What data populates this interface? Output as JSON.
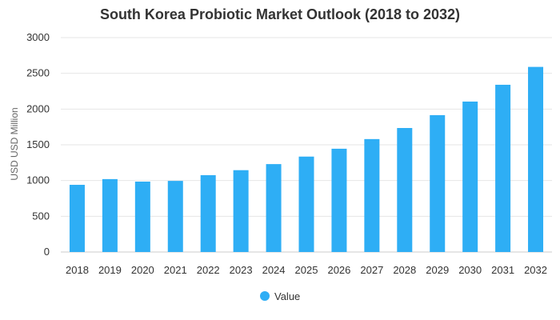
{
  "chart_data": {
    "type": "bar",
    "title": "South Korea Probiotic Market Outlook (2018 to 2032)",
    "xlabel": "",
    "ylabel": "USD USD Million",
    "ylim": [
      0,
      3000
    ],
    "yticks": [
      "0",
      "500",
      "1000",
      "1500",
      "2000",
      "2500",
      "3000"
    ],
    "categories": [
      "2018",
      "2019",
      "2020",
      "2021",
      "2022",
      "2023",
      "2024",
      "2025",
      "2026",
      "2027",
      "2028",
      "2029",
      "2030",
      "2031",
      "2032"
    ],
    "series": [
      {
        "name": "Value",
        "color": "#2eaef5",
        "values": [
          940,
          1020,
          985,
          995,
          1075,
          1145,
          1230,
          1335,
          1445,
          1580,
          1735,
          1915,
          2105,
          2340,
          2590
        ]
      }
    ],
    "legend": "bottom",
    "grid": true
  }
}
